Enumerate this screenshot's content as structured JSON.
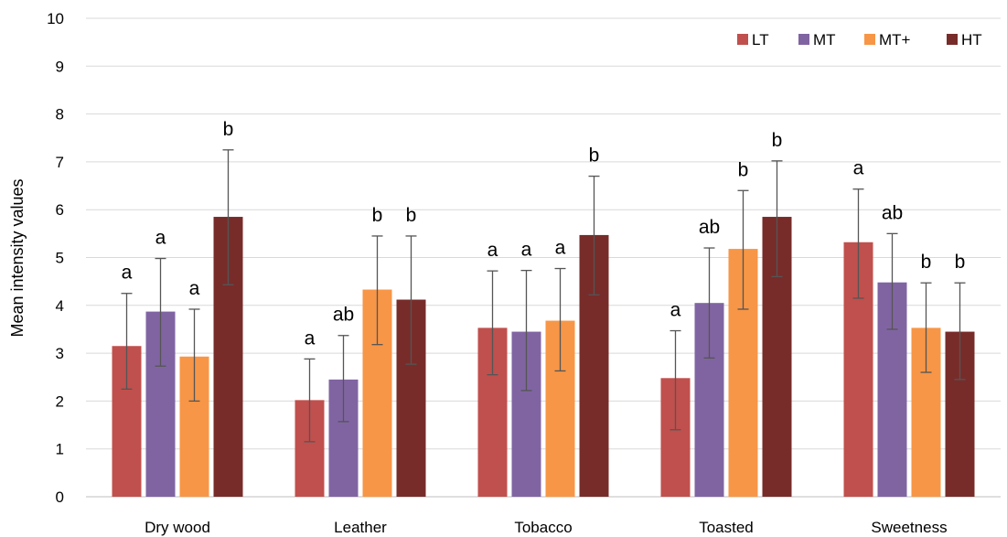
{
  "chart_data": {
    "type": "bar",
    "title": "",
    "xlabel": "",
    "ylabel": "Mean intensity values",
    "ylim": [
      0,
      10
    ],
    "yticks": [
      "0",
      "1",
      "2",
      "3",
      "4",
      "5",
      "6",
      "7",
      "8",
      "9",
      "10"
    ],
    "grid": true,
    "legend_position": "top-right",
    "categories": [
      "Dry wood",
      "Leather",
      "Tobacco",
      "Toasted",
      "Sweetness"
    ],
    "series": [
      {
        "name": "LT",
        "color": "#C0504D",
        "values": [
          3.15,
          2.02,
          3.53,
          2.48,
          5.32
        ],
        "err_low": [
          2.25,
          1.15,
          2.55,
          1.4,
          4.15
        ],
        "err_high": [
          4.25,
          2.88,
          4.72,
          3.47,
          6.43
        ],
        "labels": [
          "a",
          "a",
          "a",
          "a",
          "a"
        ]
      },
      {
        "name": "MT",
        "color": "#8064A2",
        "values": [
          3.87,
          2.45,
          3.45,
          4.05,
          4.48
        ],
        "err_low": [
          2.73,
          1.57,
          2.22,
          2.9,
          3.5
        ],
        "err_high": [
          4.98,
          3.37,
          4.73,
          5.2,
          5.5
        ],
        "labels": [
          "a",
          "ab",
          "a",
          "ab",
          "ab"
        ]
      },
      {
        "name": "MT+",
        "color": "#F79646",
        "values": [
          2.93,
          4.33,
          3.68,
          5.18,
          3.53
        ],
        "err_low": [
          2.0,
          3.18,
          2.63,
          3.92,
          2.6
        ],
        "err_high": [
          3.92,
          5.45,
          4.77,
          6.4,
          4.47
        ],
        "labels": [
          "a",
          "b",
          "a",
          "b",
          "b"
        ]
      },
      {
        "name": "HT",
        "color": "#772C2A",
        "values": [
          5.85,
          4.12,
          5.47,
          5.85,
          3.45
        ],
        "err_low": [
          4.43,
          2.77,
          4.22,
          4.6,
          2.45
        ],
        "err_high": [
          7.25,
          5.45,
          6.7,
          7.02,
          4.47
        ],
        "labels": [
          "b",
          "b",
          "b",
          "b",
          "b"
        ]
      }
    ]
  }
}
